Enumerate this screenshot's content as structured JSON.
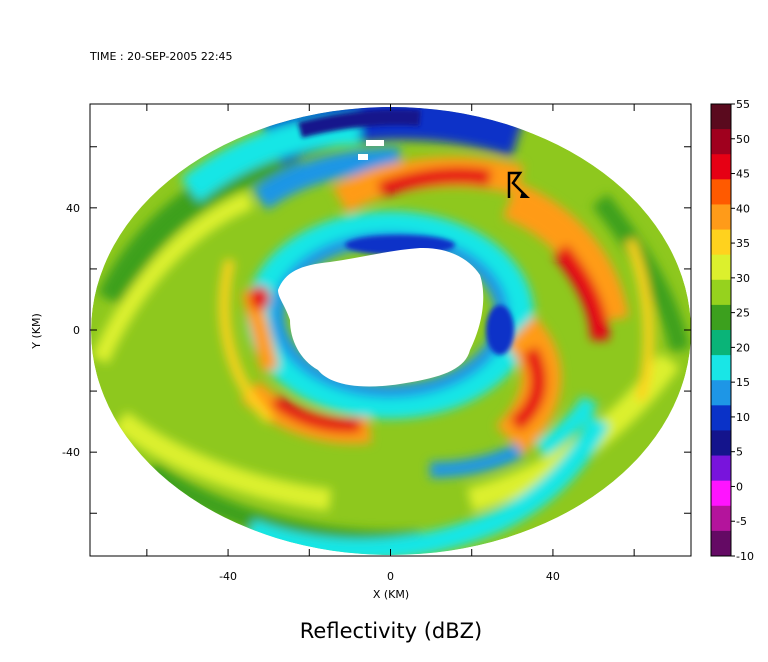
{
  "time_label": "TIME : 20-SEP-2005 22:45",
  "chart_data": {
    "type": "heatmap",
    "title": "Reflectivity (dBZ)",
    "xlabel": "X (KM)",
    "ylabel": "Y (KM)",
    "xlim": [
      -74,
      74
    ],
    "ylim": [
      -74,
      74
    ],
    "x_ticks": [
      -40,
      0,
      40
    ],
    "y_ticks": [
      -40,
      0,
      40
    ],
    "colorbar": {
      "min": -10,
      "max": 55,
      "ticks": [
        55,
        50,
        45,
        40,
        35,
        30,
        25,
        20,
        15,
        10,
        5,
        0,
        -5,
        -10
      ],
      "colors": [
        "#5a0a1e",
        "#a0001e",
        "#e60014",
        "#ff5a00",
        "#ff9b19",
        "#ffd21e",
        "#dcf02d",
        "#96d21e",
        "#3ca01e",
        "#0ab478",
        "#19e6e6",
        "#1e96e6",
        "#0a32c8",
        "#14148c",
        "#7814dc",
        "#ff14ff",
        "#b4149c",
        "#640a64"
      ]
    },
    "field_description": "Doppler radar reflectivity of a hurricane; annular echo region with clear eye near center and strong (40-50 dBZ) eyewall bands",
    "marker_arrow": true
  }
}
